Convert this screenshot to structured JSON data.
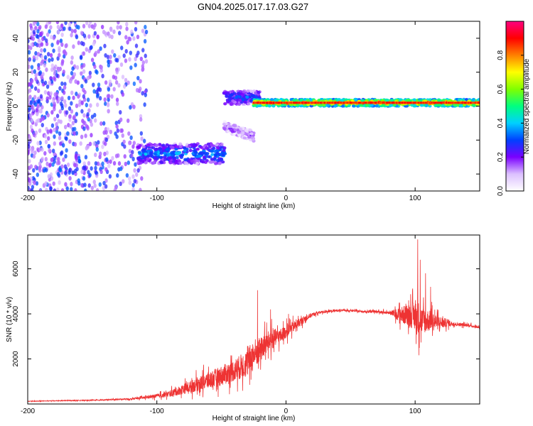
{
  "figure_title": "GN04.2025.017.17.03.G27",
  "chart_data": [
    {
      "type": "heatmap",
      "title": "",
      "xlabel": "Height of straight line (km)",
      "ylabel": "Frequency (Hz)",
      "xlim": [
        -200,
        150
      ],
      "ylim": [
        -50,
        50
      ],
      "x_ticks": [
        -200,
        -100,
        0,
        100
      ],
      "y_ticks": [
        -40,
        -20,
        0,
        20,
        40
      ],
      "grid": false,
      "colorbar": {
        "label": "Normalized spectral amplitude",
        "range": [
          0,
          1
        ],
        "ticks": [
          "0.0",
          "0.2",
          "0.4",
          "0.6",
          "0.8"
        ],
        "colors": [
          "#ffffff",
          "#dcc0ff",
          "#7a00ff",
          "#0040ff",
          "#00d0ff",
          "#00ff80",
          "#80ff00",
          "#ffff00",
          "#ff8000",
          "#ff0000",
          "#ff0080"
        ]
      },
      "features": [
        {
          "x_range": [
            -200,
            -108
          ],
          "freq_range": [
            -50,
            50
          ],
          "amplitude": 0.1
        },
        {
          "x_range": [
            -115,
            -47
          ],
          "freq_center": -28,
          "freq_halfwidth": 6,
          "amplitude": 0.35
        },
        {
          "x_range": [
            -48,
            -20
          ],
          "freq_center": 5,
          "freq_halfwidth": 4,
          "amplitude": 0.3
        },
        {
          "x_range": [
            -48,
            -25
          ],
          "freq_center": -12,
          "freq_halfwidth": 3,
          "amplitude": 0.15
        },
        {
          "x_range": [
            -25,
            150
          ],
          "freq_center": 2,
          "freq_halfwidth": 2,
          "amplitude": 0.85
        }
      ]
    },
    {
      "type": "line",
      "title": "",
      "xlabel": "Height of straight line (km)",
      "ylabel": "SNR (10 * v/v)",
      "xlim": [
        -200,
        150
      ],
      "ylim": [
        0,
        7500
      ],
      "x_ticks": [
        -200,
        -100,
        0,
        100
      ],
      "y_ticks": [
        2000,
        4000,
        6000
      ],
      "grid": false,
      "series": [
        {
          "color": "#ee3333",
          "x": [
            -200,
            -180,
            -160,
            -140,
            -120,
            -110,
            -100,
            -90,
            -80,
            -70,
            -60,
            -50,
            -40,
            -30,
            -25,
            -20,
            -15,
            -10,
            -5,
            0,
            5,
            10,
            15,
            20,
            25,
            30,
            40,
            50,
            60,
            70,
            80,
            85,
            90,
            95,
            100,
            102,
            105,
            110,
            115,
            120,
            125,
            130,
            140,
            150
          ],
          "y": [
            120,
            140,
            160,
            180,
            220,
            280,
            350,
            450,
            650,
            850,
            1050,
            1250,
            1500,
            1800,
            2200,
            2400,
            2700,
            2900,
            3000,
            3200,
            3400,
            3600,
            3800,
            3950,
            4050,
            4100,
            4150,
            4150,
            4100,
            4100,
            4050,
            4000,
            3950,
            3950,
            3900,
            3800,
            3700,
            3700,
            3650,
            3600,
            3600,
            3550,
            3500,
            3400
          ],
          "noise": [
            20,
            25,
            30,
            40,
            60,
            100,
            160,
            250,
            400,
            550,
            700,
            800,
            900,
            1100,
            1300,
            1000,
            900,
            800,
            600,
            500,
            450,
            350,
            250,
            150,
            120,
            100,
            90,
            80,
            80,
            90,
            120,
            400,
            700,
            900,
            1200,
            1500,
            1100,
            900,
            700,
            500,
            300,
            150,
            120,
            100
          ],
          "spikes": [
            [
              -22,
              5050
            ],
            [
              -12,
              4200
            ],
            [
              2,
              4000
            ],
            [
              88,
              4500
            ],
            [
              95,
              4600
            ],
            [
              102,
              7300
            ],
            [
              104,
              6400
            ],
            [
              108,
              5800
            ],
            [
              112,
              5200
            ]
          ]
        }
      ]
    }
  ]
}
